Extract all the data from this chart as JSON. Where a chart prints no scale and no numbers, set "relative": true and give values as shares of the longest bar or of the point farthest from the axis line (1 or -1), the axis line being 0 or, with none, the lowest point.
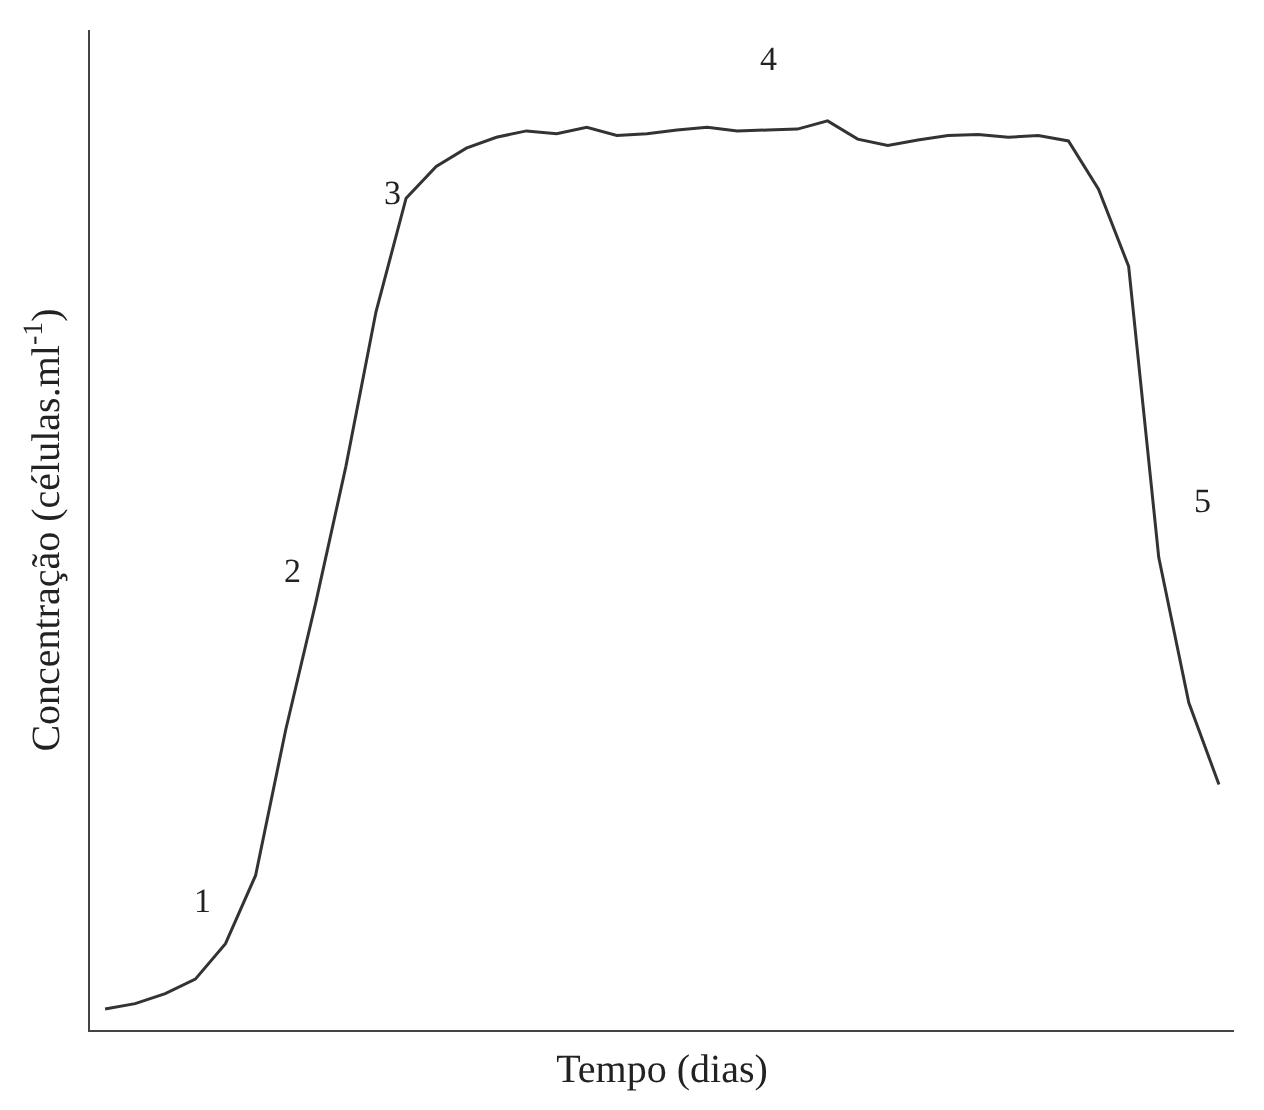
{
  "chart_data": {
    "type": "line",
    "relative": true,
    "xlabel": "Tempo (dias)",
    "ylabel": "Concentração (células.ml$^{-1}$)",
    "categories": [
      null,
      null,
      null,
      null,
      null,
      null,
      null,
      null,
      null,
      null,
      null,
      null,
      null,
      null,
      null,
      null,
      null,
      null,
      null,
      null,
      null,
      null,
      null,
      null,
      null,
      null,
      null,
      null,
      null,
      null,
      null,
      null,
      null,
      null,
      null,
      null,
      null,
      null
    ],
    "series": [
      {
        "color": "#333333",
        "values": [
          0.023,
          0.029,
          0.04,
          0.056,
          0.095,
          0.17,
          0.33,
          0.47,
          0.62,
          0.79,
          0.915,
          0.95,
          0.97,
          0.982,
          0.989,
          0.986,
          0.993,
          0.984,
          0.986,
          0.99,
          0.993,
          0.989,
          0.99,
          0.991,
          1,
          0.98,
          0.973,
          0.979,
          0.984,
          0.985,
          0.982,
          0.984,
          0.978,
          0.925,
          0.84,
          0.52,
          0.36,
          0.27
        ]
      }
    ],
    "annotations": [
      "1",
      "2",
      "3",
      "4",
      "5"
    ],
    "grid": false,
    "marker": "none",
    "line_style": "solid"
  }
}
